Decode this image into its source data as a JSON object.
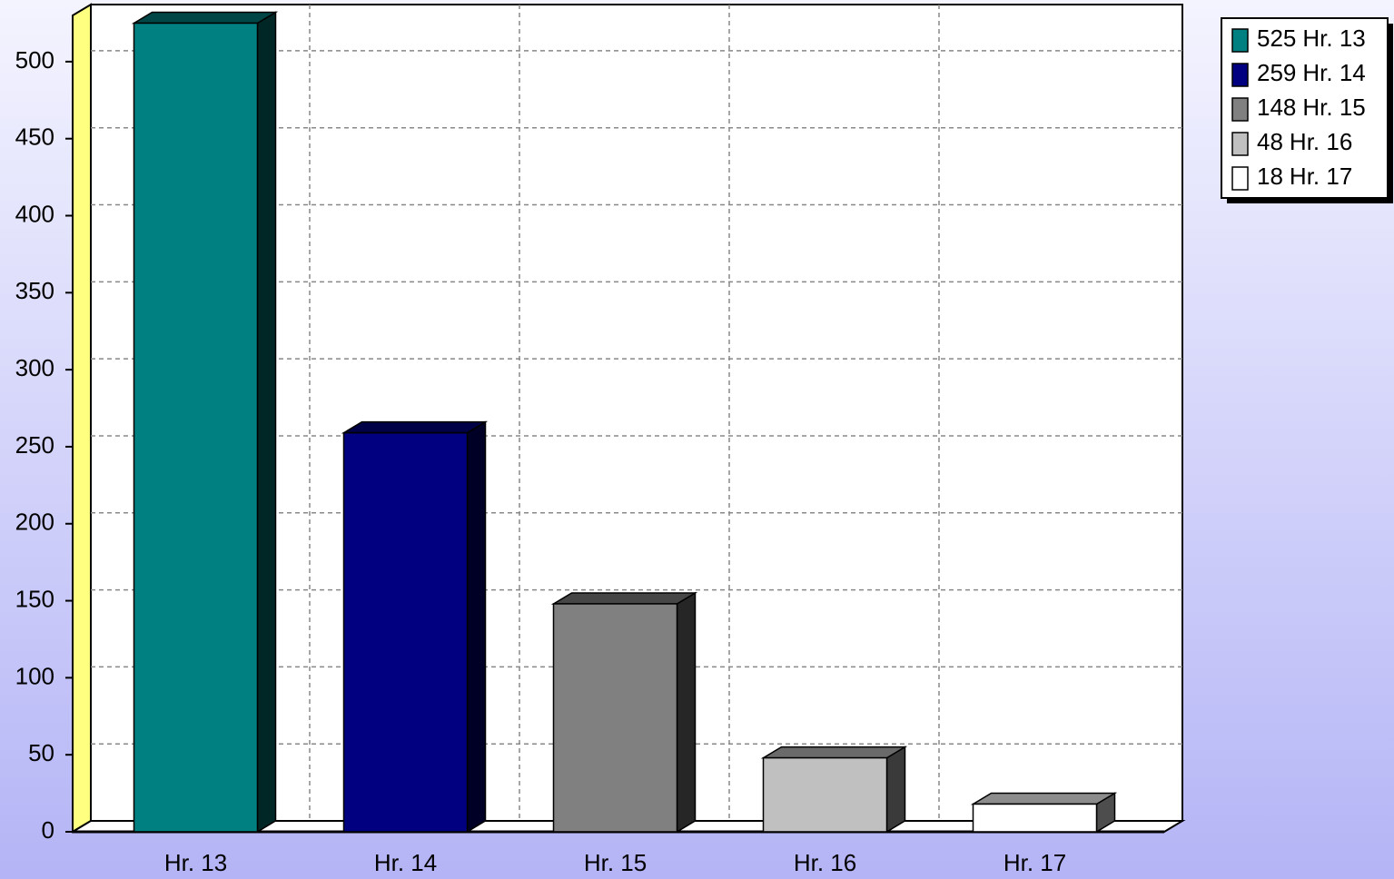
{
  "chart_data": {
    "type": "bar3d",
    "categories": [
      "Hr. 13",
      "Hr. 14",
      "Hr. 15",
      "Hr. 16",
      "Hr. 17"
    ],
    "values": [
      525,
      259,
      148,
      48,
      18
    ],
    "colors": [
      "#008080",
      "#000080",
      "#808080",
      "#c0c0c0",
      "#ffffff"
    ],
    "ylim": [
      0,
      530
    ],
    "yticks": [
      0,
      50,
      100,
      150,
      200,
      250,
      300,
      350,
      400,
      450,
      500
    ],
    "grid": true,
    "legend": "top-right"
  }
}
